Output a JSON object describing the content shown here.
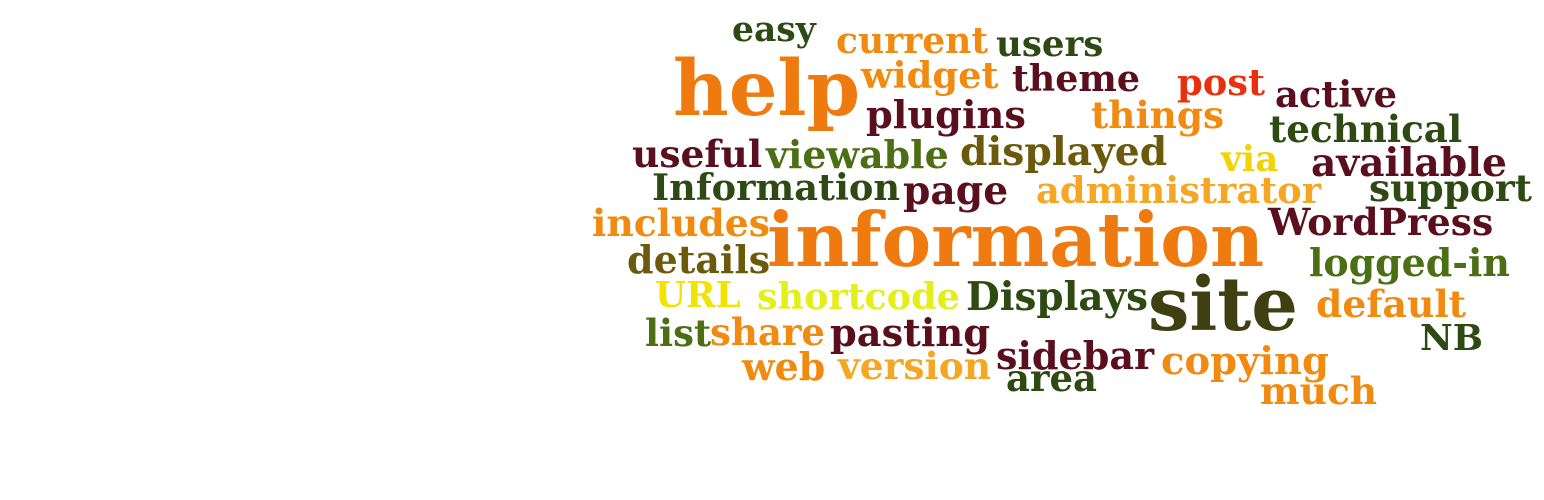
{
  "words": [
    {
      "text": "easy",
      "color": "#2c4a12"
    },
    {
      "text": "current",
      "color": "#f08a10"
    },
    {
      "text": "users",
      "color": "#2c4a12"
    },
    {
      "text": "help",
      "color": "#ef7b10"
    },
    {
      "text": "widget",
      "color": "#f08a10"
    },
    {
      "text": "theme",
      "color": "#5a0f1e"
    },
    {
      "text": "post",
      "color": "#e8300c"
    },
    {
      "text": "active",
      "color": "#5a0f1e"
    },
    {
      "text": "plugins",
      "color": "#5a0f1e"
    },
    {
      "text": "things",
      "color": "#f08a10"
    },
    {
      "text": "technical",
      "color": "#2c4a12"
    },
    {
      "text": "useful",
      "color": "#5a0f1e"
    },
    {
      "text": "viewable",
      "color": "#4c6e14"
    },
    {
      "text": "displayed",
      "color": "#6c5a0c"
    },
    {
      "text": "via",
      "color": "#f2d300"
    },
    {
      "text": "available",
      "color": "#5a0f1e"
    },
    {
      "text": "Information",
      "color": "#2c4a12"
    },
    {
      "text": "page",
      "color": "#5a0f1e"
    },
    {
      "text": "administrator",
      "color": "#f5a623"
    },
    {
      "text": "support",
      "color": "#2c4a12"
    },
    {
      "text": "includes",
      "color": "#f08a10"
    },
    {
      "text": "information",
      "color": "#ef7b10"
    },
    {
      "text": "WordPress",
      "color": "#5a0f1e"
    },
    {
      "text": "details",
      "color": "#6c5a0c"
    },
    {
      "text": "logged-in",
      "color": "#4c6e14"
    },
    {
      "text": "URL",
      "color": "#f2e300"
    },
    {
      "text": "shortcode",
      "color": "#e4ee18"
    },
    {
      "text": "Displays",
      "color": "#2c4a12"
    },
    {
      "text": "site",
      "color": "#3e4012"
    },
    {
      "text": "default",
      "color": "#f08a10"
    },
    {
      "text": "list",
      "color": "#4c6e14"
    },
    {
      "text": "share",
      "color": "#f08a10"
    },
    {
      "text": "pasting",
      "color": "#5a0f1e"
    },
    {
      "text": "NB",
      "color": "#2c4a12"
    },
    {
      "text": "sidebar",
      "color": "#5a0f1e"
    },
    {
      "text": "copying",
      "color": "#f08a10"
    },
    {
      "text": "web",
      "color": "#f08a10"
    },
    {
      "text": "version",
      "color": "#f5a623"
    },
    {
      "text": "area",
      "color": "#2c4a12"
    },
    {
      "text": "much",
      "color": "#f08a10"
    }
  ]
}
